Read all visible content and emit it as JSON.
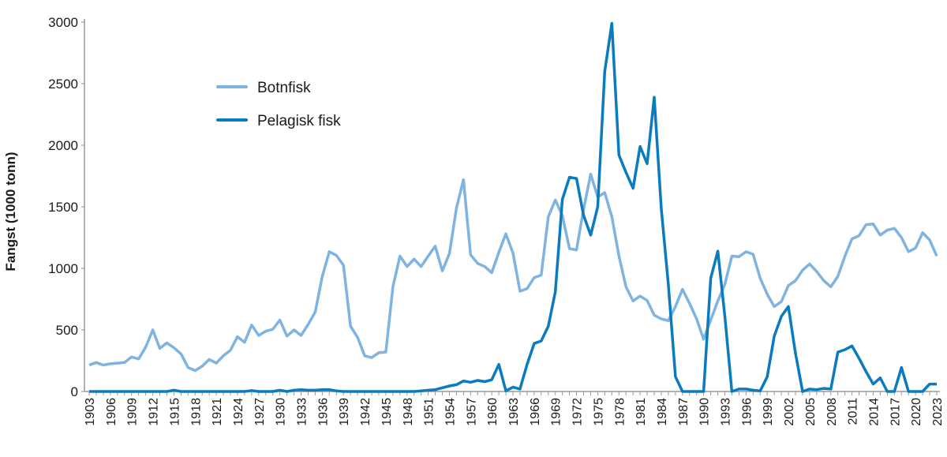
{
  "chart_data": {
    "type": "line",
    "title": "",
    "xlabel": "",
    "ylabel": "Fangst (1000 tonn)",
    "ylim": [
      0,
      3000
    ],
    "yticks": [
      0,
      500,
      1000,
      1500,
      2000,
      2500,
      3000
    ],
    "xlim": [
      1903,
      2023
    ],
    "xtick_step": 3,
    "grid": false,
    "legend_position": "top-left",
    "x_start": 1903,
    "series": [
      {
        "name": "Botnfisk",
        "color": "#7fb3e0",
        "values": [
          215,
          235,
          215,
          225,
          230,
          235,
          280,
          265,
          360,
          500,
          350,
          395,
          355,
          305,
          195,
          170,
          205,
          260,
          230,
          290,
          335,
          445,
          400,
          540,
          455,
          490,
          505,
          580,
          450,
          500,
          455,
          545,
          645,
          935,
          1135,
          1105,
          1025,
          530,
          440,
          290,
          275,
          315,
          320,
          850,
          1100,
          1015,
          1075,
          1015,
          1100,
          1180,
          980,
          1120,
          1490,
          1720,
          1110,
          1040,
          1015,
          965,
          1130,
          1280,
          1125,
          815,
          835,
          925,
          945,
          1420,
          1555,
          1430,
          1160,
          1150,
          1480,
          1765,
          1580,
          1615,
          1420,
          1100,
          850,
          735,
          775,
          740,
          620,
          590,
          575,
          690,
          830,
          715,
          590,
          425,
          580,
          735,
          870,
          1100,
          1095,
          1135,
          1115,
          920,
          790,
          690,
          730,
          860,
          900,
          985,
          1035,
          975,
          900,
          850,
          935,
          1100,
          1240,
          1265,
          1355,
          1360,
          1270,
          1310,
          1325,
          1250,
          1135,
          1165,
          1290,
          1230,
          1100
        ]
      },
      {
        "name": "Pelagisk fisk",
        "color": "#0a7bbf",
        "values": [
          0,
          0,
          0,
          0,
          0,
          0,
          0,
          0,
          0,
          0,
          0,
          0,
          10,
          0,
          0,
          0,
          0,
          0,
          0,
          0,
          0,
          0,
          0,
          8,
          0,
          0,
          0,
          10,
          0,
          10,
          15,
          10,
          10,
          15,
          15,
          5,
          0,
          0,
          0,
          0,
          0,
          0,
          0,
          0,
          0,
          0,
          0,
          5,
          10,
          15,
          30,
          45,
          55,
          85,
          75,
          90,
          80,
          95,
          220,
          5,
          35,
          20,
          220,
          390,
          410,
          530,
          810,
          1560,
          1740,
          1730,
          1430,
          1270,
          1500,
          2600,
          2990,
          1920,
          1780,
          1650,
          1990,
          1850,
          2390,
          1480,
          870,
          120,
          0,
          0,
          0,
          0,
          920,
          1140,
          610,
          0,
          20,
          20,
          10,
          5,
          120,
          450,
          610,
          690,
          310,
          0,
          20,
          15,
          25,
          20,
          320,
          340,
          370,
          270,
          160,
          60,
          110,
          0,
          0,
          195,
          0,
          0,
          0,
          60,
          60
        ]
      }
    ]
  }
}
